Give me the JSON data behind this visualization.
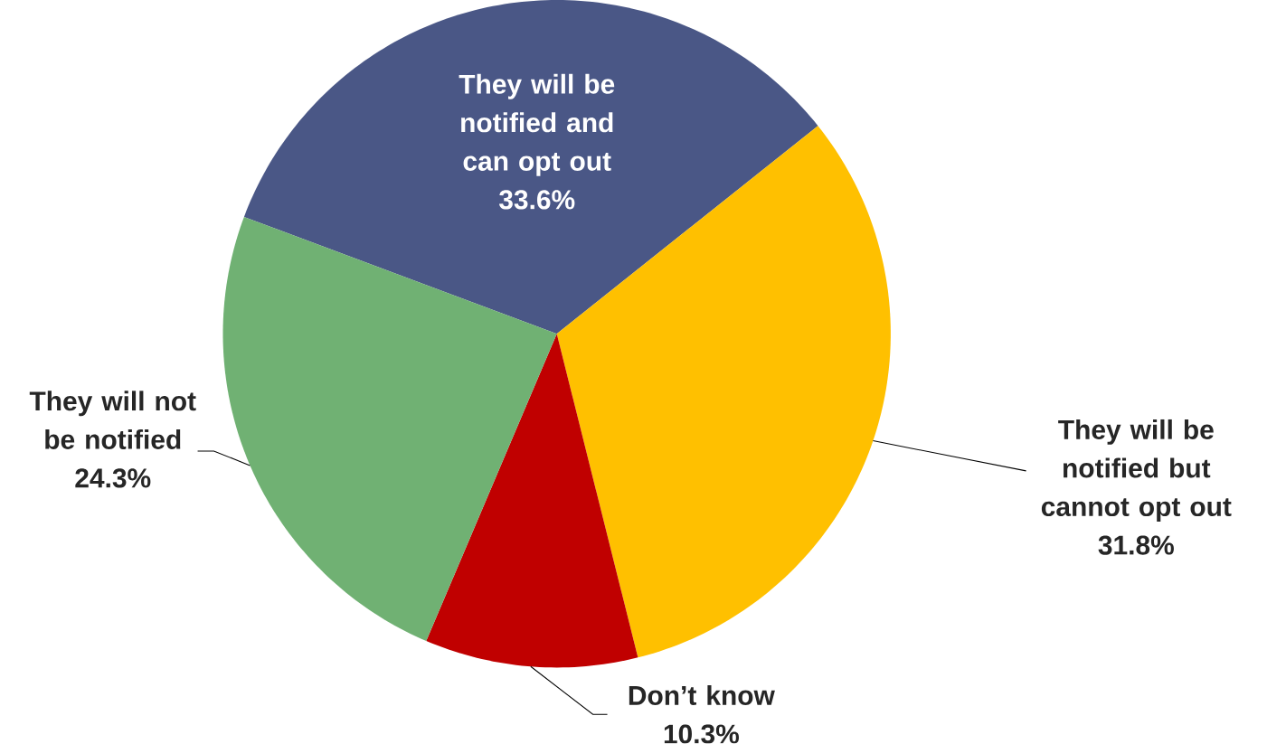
{
  "chart_data": {
    "type": "pie",
    "categories": [
      "They will be notified and can opt out",
      "They will be notified but cannot opt out",
      "Don’t know",
      "They will not be notified"
    ],
    "values": [
      33.6,
      31.8,
      10.3,
      24.3
    ],
    "colors": [
      "#4a5786",
      "#ffc000",
      "#c00000",
      "#70b173"
    ],
    "value_labels": [
      "33.6%",
      "31.8%",
      "10.3%",
      "24.3%"
    ]
  }
}
